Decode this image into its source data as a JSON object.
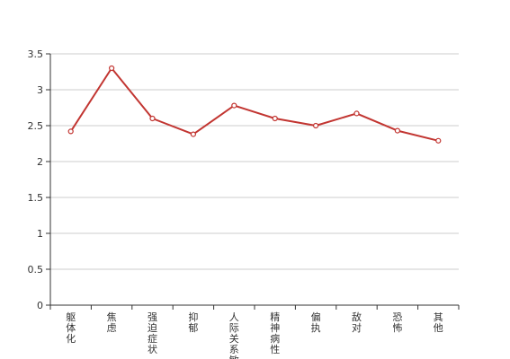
{
  "chart_data": {
    "type": "line",
    "title": "",
    "xlabel": "",
    "ylabel": "",
    "categories": [
      "躯体化",
      "焦虑",
      "强迫症状",
      "抑郁",
      "人际关系敏感",
      "精神病性",
      "偏执",
      "敌对",
      "恐怖",
      "其他"
    ],
    "series": [
      {
        "values": [
          2.42,
          3.3,
          2.6,
          2.38,
          2.78,
          2.6,
          2.5,
          2.67,
          2.43,
          2.29
        ]
      }
    ],
    "ylim": [
      0,
      3.5
    ],
    "yticks": [
      "0",
      "0.5",
      "1",
      "1.5",
      "2",
      "2.5",
      "3",
      "3.5"
    ],
    "grid": true,
    "colors": {
      "line": "#c23531",
      "grid": "#cccccc",
      "axis": "#333333"
    }
  }
}
